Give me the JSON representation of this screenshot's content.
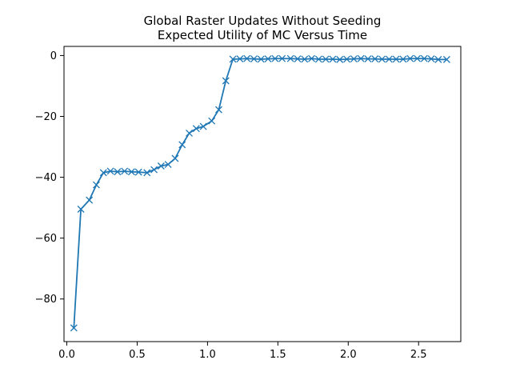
{
  "chart_data": {
    "type": "line",
    "title": "Global Raster Updates Without Seeding",
    "subtitle": "Expected Utility of MC Versus Time",
    "xlabel": "",
    "ylabel": "",
    "xlim": [
      -0.02,
      2.8
    ],
    "ylim": [
      -94,
      3
    ],
    "x_ticks": [
      0.0,
      0.5,
      1.0,
      1.5,
      2.0,
      2.5
    ],
    "x_tick_labels": [
      "0.0",
      "0.5",
      "1.0",
      "1.5",
      "2.0",
      "2.5"
    ],
    "y_ticks": [
      0,
      -20,
      -40,
      -60,
      -80
    ],
    "y_tick_labels": [
      "0",
      "−20",
      "−40",
      "−60",
      "−80"
    ],
    "grid": false,
    "series": [
      {
        "color": "#1f77b4",
        "marker": "x",
        "x": [
          0.05,
          0.1,
          0.16,
          0.21,
          0.26,
          0.31,
          0.36,
          0.41,
          0.46,
          0.51,
          0.57,
          0.62,
          0.67,
          0.72,
          0.77,
          0.82,
          0.87,
          0.92,
          0.97,
          1.03,
          1.08,
          1.13,
          1.18,
          1.23,
          1.28,
          1.33,
          1.38,
          1.43,
          1.48,
          1.53,
          1.59,
          1.64,
          1.69,
          1.74,
          1.79,
          1.84,
          1.89,
          1.94,
          1.99,
          2.04,
          2.09,
          2.14,
          2.19,
          2.24,
          2.29,
          2.34,
          2.39,
          2.44,
          2.49,
          2.54,
          2.59,
          2.64,
          2.7
        ],
        "y": [
          -89.5,
          -50.5,
          -47.5,
          -42.5,
          -38.5,
          -38.0,
          -38.2,
          -38.0,
          -38.2,
          -38.3,
          -38.5,
          -37.5,
          -36.3,
          -35.8,
          -33.8,
          -29.3,
          -25.5,
          -24.0,
          -23.3,
          -21.5,
          -17.8,
          -8.3,
          -1.2,
          -1.1,
          -1.0,
          -1.1,
          -1.2,
          -1.1,
          -1.0,
          -1.0,
          -1.0,
          -1.1,
          -1.2,
          -1.0,
          -1.2,
          -1.2,
          -1.2,
          -1.3,
          -1.2,
          -1.1,
          -1.0,
          -1.1,
          -1.1,
          -1.2,
          -1.2,
          -1.2,
          -1.2,
          -1.0,
          -1.0,
          -1.0,
          -1.1,
          -1.3,
          -1.3
        ]
      }
    ]
  }
}
